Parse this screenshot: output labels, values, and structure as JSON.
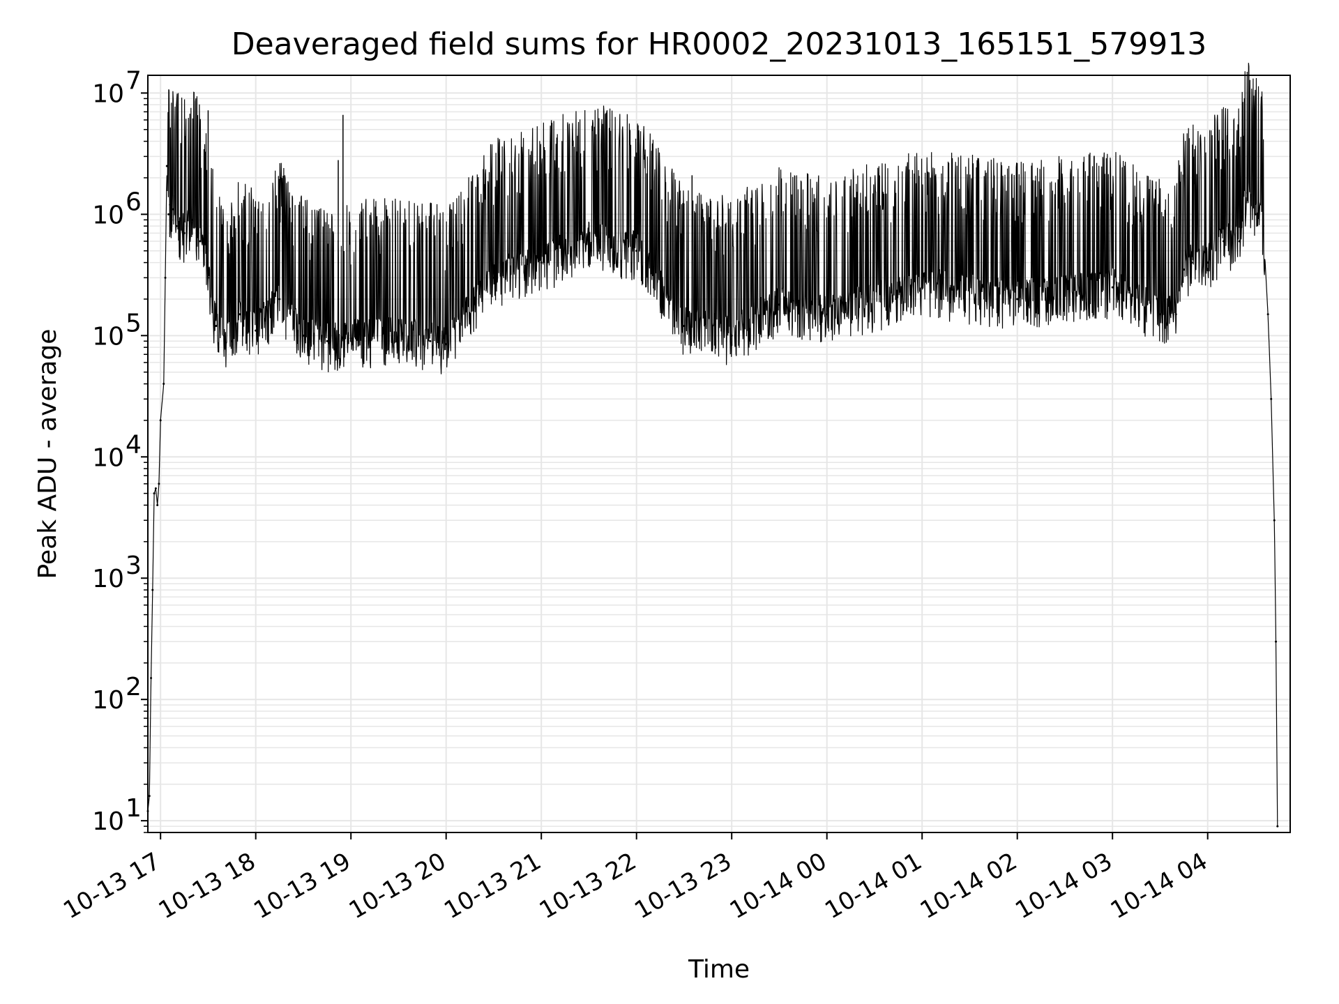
{
  "chart_data": {
    "type": "line",
    "title": "Deaveraged field sums for HR0002_20231013_165151_579913",
    "xlabel": "Time",
    "ylabel": "Peak ADU - average",
    "yscale": "log",
    "grid": true,
    "line_color": "#000000",
    "grid_color": "#e6e6e6",
    "xlim": [
      "2023-10-13 16:52",
      "2023-10-14 04:52"
    ],
    "ylim": [
      8,
      14000000
    ],
    "x_ticks": [
      {
        "value": "2023-10-13 17:00",
        "label": "10-13 17"
      },
      {
        "value": "2023-10-13 18:00",
        "label": "10-13 18"
      },
      {
        "value": "2023-10-13 19:00",
        "label": "10-13 19"
      },
      {
        "value": "2023-10-13 20:00",
        "label": "10-13 20"
      },
      {
        "value": "2023-10-13 21:00",
        "label": "10-13 21"
      },
      {
        "value": "2023-10-13 22:00",
        "label": "10-13 22"
      },
      {
        "value": "2023-10-13 23:00",
        "label": "10-13 23"
      },
      {
        "value": "2023-10-14 00:00",
        "label": "10-14 00"
      },
      {
        "value": "2023-10-14 01:00",
        "label": "10-14 01"
      },
      {
        "value": "2023-10-14 02:00",
        "label": "10-14 02"
      },
      {
        "value": "2023-10-14 03:00",
        "label": "10-14 03"
      },
      {
        "value": "2023-10-14 04:00",
        "label": "10-14 04"
      }
    ],
    "y_ticks": [
      {
        "value": 10,
        "base": "10",
        "exp": "1"
      },
      {
        "value": 100,
        "base": "10",
        "exp": "2"
      },
      {
        "value": 1000,
        "base": "10",
        "exp": "3"
      },
      {
        "value": 10000,
        "base": "10",
        "exp": "4"
      },
      {
        "value": 100000,
        "base": "10",
        "exp": "5"
      },
      {
        "value": 1000000,
        "base": "10",
        "exp": "6"
      },
      {
        "value": 10000000,
        "base": "10",
        "exp": "7"
      }
    ],
    "series": [
      {
        "x": [
          "2023-10-13 16:52",
          "2023-10-13 16:53",
          "2023-10-13 16:54",
          "2023-10-13 16:55",
          "2023-10-13 16:56",
          "2023-10-13 16:57",
          "2023-10-13 16:58",
          "2023-10-13 16:59",
          "2023-10-13 17:00",
          "2023-10-13 17:02",
          "2023-10-13 17:03",
          "2023-10-13 17:04",
          "2023-10-13 17:05",
          "2023-10-13 17:06",
          "2023-10-13 17:07",
          "2023-10-13 17:08",
          "2023-10-13 17:10",
          "2023-10-13 17:15",
          "2023-10-13 17:20",
          "2023-10-13 17:25",
          "2023-10-13 17:30",
          "2023-10-13 17:35",
          "2023-10-13 17:40",
          "2023-10-13 17:45",
          "2023-10-13 17:50",
          "2023-10-13 18:00",
          "2023-10-13 18:15",
          "2023-10-13 18:30",
          "2023-10-13 18:45",
          "2023-10-13 19:00",
          "2023-10-13 19:30",
          "2023-10-13 19:50",
          "2023-10-13 20:00",
          "2023-10-13 20:30",
          "2023-10-13 21:00",
          "2023-10-13 21:30",
          "2023-10-13 22:00",
          "2023-10-13 22:30",
          "2023-10-13 23:00",
          "2023-10-13 23:30",
          "2023-10-14 00:00",
          "2023-10-14 01:00",
          "2023-10-14 02:00",
          "2023-10-14 03:00",
          "2023-10-14 03:30",
          "2023-10-14 03:40",
          "2023-10-14 03:45",
          "2023-10-14 03:50",
          "2023-10-14 04:00",
          "2023-10-14 04:10",
          "2023-10-14 04:20",
          "2023-10-14 04:25",
          "2023-10-14 04:30",
          "2023-10-14 04:35",
          "2023-10-14 04:38",
          "2023-10-14 04:40",
          "2023-10-14 04:42",
          "2023-10-14 04:43",
          "2023-10-14 04:44"
        ],
        "y": [
          12,
          16,
          150,
          800,
          5000,
          5500,
          4000,
          6000,
          20000,
          40000,
          300000,
          2500000,
          1000000,
          1200000,
          900000,
          1100000,
          800000,
          700000,
          900000,
          600000,
          300000,
          120000,
          100000,
          90000,
          150000,
          110000,
          200000,
          100000,
          90000,
          95000,
          100000,
          90000,
          85000,
          300000,
          400000,
          600000,
          500000,
          120000,
          100000,
          180000,
          150000,
          250000,
          200000,
          250000,
          150000,
          150000,
          350000,
          400000,
          400000,
          600000,
          600000,
          1500000,
          1000000,
          800000,
          150000,
          30000,
          3000,
          300,
          9
        ]
      }
    ],
    "spikes": [
      {
        "x": "2023-10-13 17:30",
        "y": 7200000
      },
      {
        "x": "2023-10-13 18:52",
        "y": 2800000
      },
      {
        "x": "2023-10-13 18:55",
        "y": 6600000
      },
      {
        "x": "2023-10-13 21:35",
        "y": 2300000
      },
      {
        "x": "2023-10-13 22:35",
        "y": 2100000
      },
      {
        "x": "2023-10-14 04:30",
        "y": 4300000
      },
      {
        "x": "2023-10-14 04:32",
        "y": 4100000
      }
    ]
  }
}
